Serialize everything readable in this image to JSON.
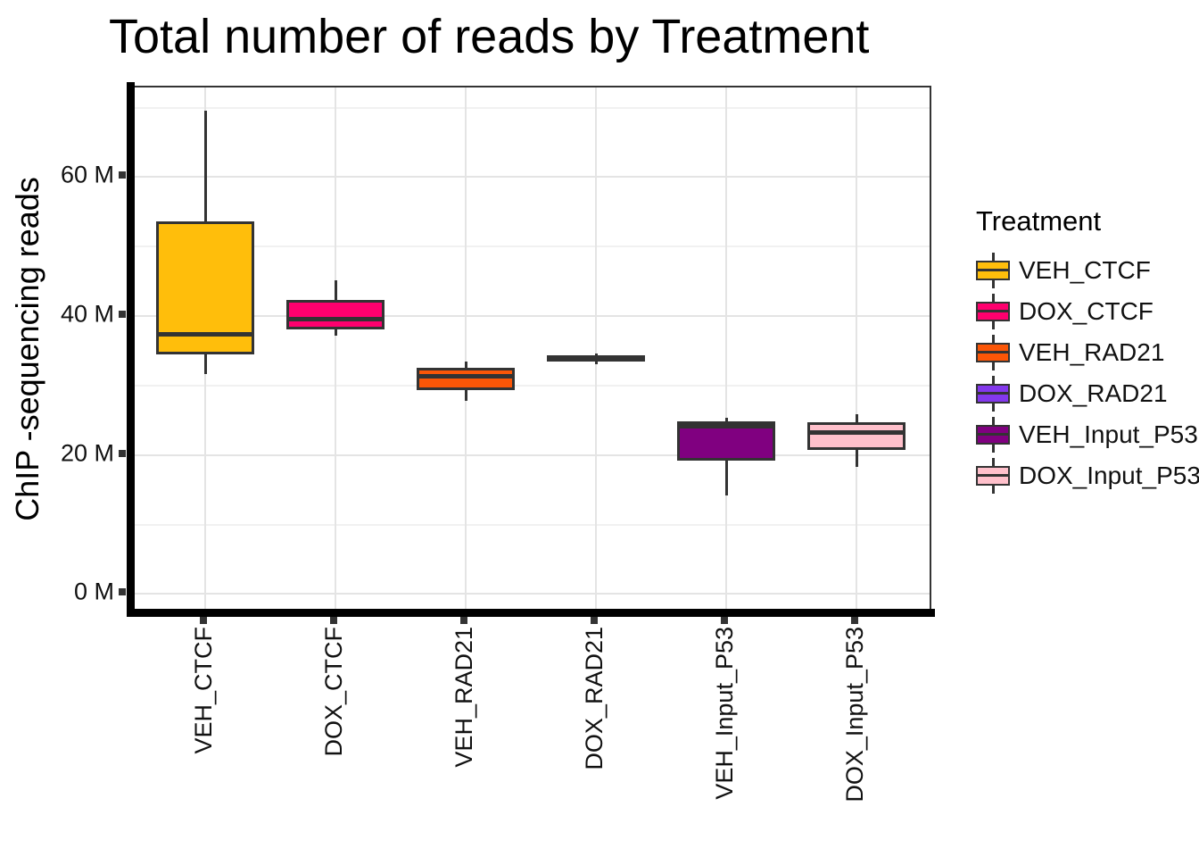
{
  "title": "Total number of reads by Treatment",
  "chart_data": {
    "type": "boxplot",
    "title": "Total number of reads by Treatment",
    "xlabel": "",
    "ylabel": "ChIP -sequencing reads",
    "value_unit": "millions of reads",
    "categories": [
      "VEH_CTCF",
      "DOX_CTCF",
      "VEH_RAD21",
      "DOX_RAD21",
      "VEH_Input_P53",
      "DOX_Input_P53"
    ],
    "series": [
      {
        "name": "VEH_CTCF",
        "color": "#FFBE0B",
        "min": 31.6,
        "q1": 34.5,
        "median": 37.4,
        "q3": 53.6,
        "max": 69.5
      },
      {
        "name": "DOX_CTCF",
        "color": "#FF006E",
        "min": 37.2,
        "q1": 38.1,
        "median": 39.5,
        "q3": 42.3,
        "max": 45.2
      },
      {
        "name": "VEH_RAD21",
        "color": "#FB5607",
        "min": 27.8,
        "q1": 29.4,
        "median": 31.4,
        "q3": 32.5,
        "max": 33.4
      },
      {
        "name": "DOX_RAD21",
        "color": "#8338EC",
        "min": 33.1,
        "q1": 33.4,
        "median": 33.8,
        "q3": 34.3,
        "max": 34.6
      },
      {
        "name": "VEH_Input_P53",
        "color": "#800080",
        "min": 14.2,
        "q1": 19.2,
        "median": 24.2,
        "q3": 24.9,
        "max": 25.4
      },
      {
        "name": "DOX_Input_P53",
        "color": "#FFC0CB",
        "min": 18.3,
        "q1": 20.7,
        "median": 23.2,
        "q3": 24.7,
        "max": 25.9
      }
    ],
    "y_axis": {
      "range": [
        -2.9,
        72.9
      ],
      "major_ticks": [
        {
          "value": 0,
          "label": "0 M"
        },
        {
          "value": 20,
          "label": "20 M"
        },
        {
          "value": 40,
          "label": "40 M"
        },
        {
          "value": 60,
          "label": "60 M"
        }
      ],
      "minor_gridlines": [
        10,
        30,
        50,
        70
      ],
      "grid": true
    },
    "legend": {
      "title": "Treatment",
      "position": "right",
      "entries": [
        "VEH_CTCF",
        "DOX_CTCF",
        "VEH_RAD21",
        "DOX_RAD21",
        "VEH_Input_P53",
        "DOX_Input_P53"
      ]
    }
  },
  "colors": {
    "box_border": "#333333",
    "axis_line": "#000000",
    "panel_border": "#333333",
    "grid_major": "#e4e4e4",
    "grid_minor": "#f1f1f1",
    "background": "#ffffff"
  }
}
